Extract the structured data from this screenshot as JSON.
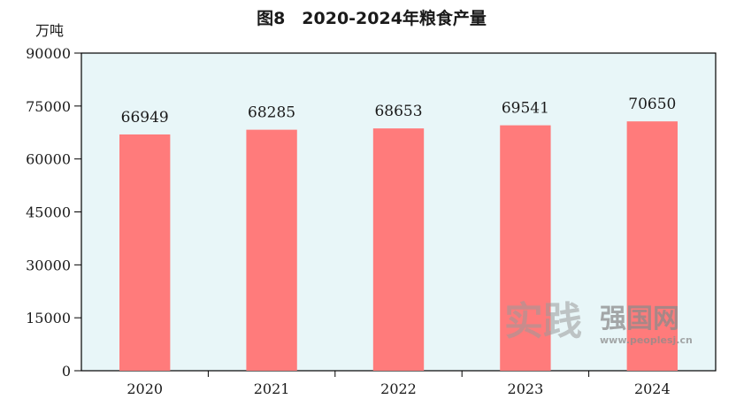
{
  "chart_data": {
    "type": "bar",
    "title": "图8　2020-2024年粮食产量",
    "unit_label": "万吨",
    "categories": [
      "2020",
      "2021",
      "2022",
      "2023",
      "2024"
    ],
    "values": [
      66949,
      68285,
      68653,
      69541,
      70650
    ],
    "data_labels": [
      "66949",
      "68285",
      "68653",
      "69541",
      "70650"
    ],
    "ylim": [
      0,
      90000
    ],
    "yticks": [
      0,
      15000,
      30000,
      45000,
      60000,
      75000,
      90000
    ],
    "ytick_labels": [
      "0",
      "15000",
      "30000",
      "45000",
      "60000",
      "75000",
      "90000"
    ],
    "grid": false,
    "colors": {
      "bar": "#ff7b7b",
      "plot_bg": "#e8f6f8",
      "frame": "#000000"
    }
  },
  "watermark": {
    "brush_text": "实践",
    "text": "强国网",
    "url": "www.peoplesj.cn"
  }
}
